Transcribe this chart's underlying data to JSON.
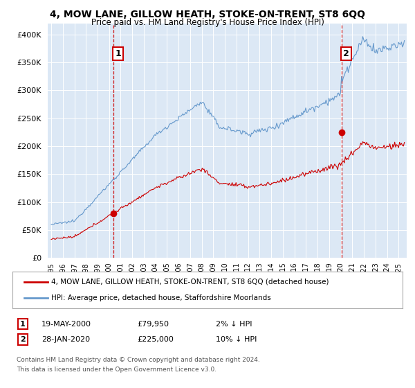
{
  "title": "4, MOW LANE, GILLOW HEATH, STOKE-ON-TRENT, ST8 6QQ",
  "subtitle": "Price paid vs. HM Land Registry's House Price Index (HPI)",
  "legend_label_red": "4, MOW LANE, GILLOW HEATH, STOKE-ON-TRENT, ST8 6QQ (detached house)",
  "legend_label_blue": "HPI: Average price, detached house, Staffordshire Moorlands",
  "annotation1_label": "1",
  "annotation1_date": "19-MAY-2000",
  "annotation1_price": "£79,950",
  "annotation1_hpi": "2% ↓ HPI",
  "annotation2_label": "2",
  "annotation2_date": "28-JAN-2020",
  "annotation2_price": "£225,000",
  "annotation2_hpi": "10% ↓ HPI",
  "footnote1": "Contains HM Land Registry data © Crown copyright and database right 2024.",
  "footnote2": "This data is licensed under the Open Government Licence v3.0.",
  "ylim_min": 0,
  "ylim_max": 420000,
  "yticks": [
    0,
    50000,
    100000,
    150000,
    200000,
    250000,
    300000,
    350000,
    400000
  ],
  "background_color": "#ffffff",
  "plot_bg_color": "#dce8f5",
  "grid_color": "#ffffff",
  "red_color": "#cc0000",
  "blue_color": "#6699cc",
  "dashed_red": "#cc0000",
  "sale1_x": 2000.38,
  "sale1_y": 79950,
  "sale2_x": 2020.08,
  "sale2_y": 225000,
  "xmin": 1994.7,
  "xmax": 2025.7
}
